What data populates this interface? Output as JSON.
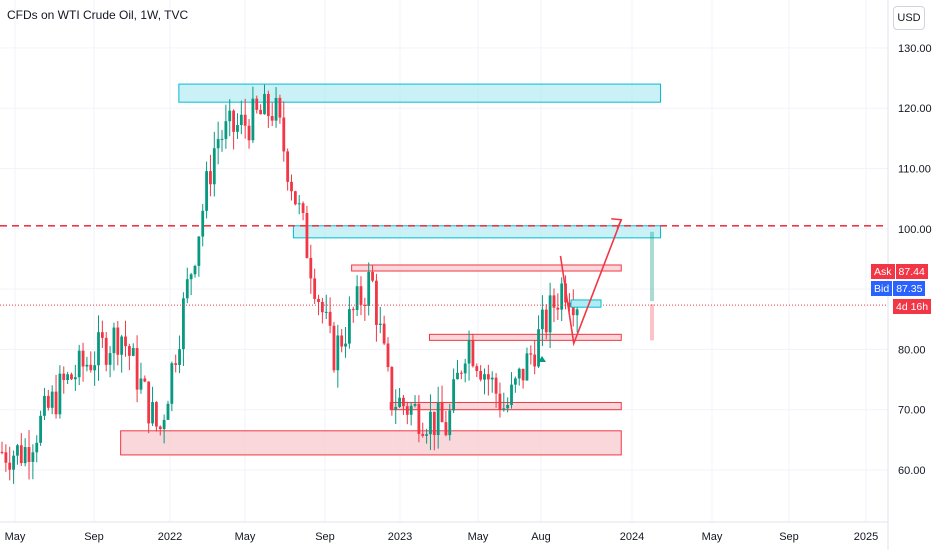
{
  "header": {
    "title": "CFDs on WTI Crude Oil, 1W, TVC",
    "currency_button": "USD"
  },
  "price_labels": {
    "ask_label": "Ask",
    "ask_value": "87.44",
    "bid_label": "Bid",
    "bid_value": "87.35",
    "countdown": "4d 16h"
  },
  "colors": {
    "up": "#089981",
    "down": "#f23645",
    "resistance_zone_fill": "#b2ebf2",
    "resistance_zone_border": "#00bcd4",
    "support_zone_fill": "#f8c9cd",
    "support_zone_border": "#f23645",
    "dashed_line": "#f23645",
    "ask_bg": "#f23645",
    "bid_bg": "#2962ff"
  },
  "chart_data": {
    "type": "candlestick",
    "title": "CFDs on WTI Crude Oil, 1W, TVC",
    "y_axis": {
      "ticks": [
        60,
        70,
        80,
        90,
        100,
        110,
        120,
        130
      ],
      "tick_labels": [
        "60.00",
        "70.00",
        "80.00",
        "90.00",
        "100.00",
        "110.00",
        "120.00",
        "130.00"
      ],
      "range": [
        55,
        135
      ]
    },
    "x_axis": {
      "tick_labels": [
        "May",
        "Sep",
        "2022",
        "May",
        "Sep",
        "2023",
        "May",
        "Aug",
        "2024",
        "May",
        "Sep",
        "2025"
      ]
    },
    "grid": true,
    "horizontal_line": {
      "value": 100.5,
      "style": "dashed"
    },
    "current_price": 87.35,
    "zones": [
      {
        "kind": "resistance",
        "from": "2022-01",
        "to": "2024-02",
        "low": 121,
        "high": 124
      },
      {
        "kind": "resistance",
        "from": "2022-07",
        "to": "2024-02",
        "low": 98.5,
        "high": 100.5
      },
      {
        "kind": "support",
        "from": "2022-10",
        "to": "2023-12",
        "low": 93,
        "high": 94
      },
      {
        "kind": "support",
        "from": "2023-02",
        "to": "2023-12",
        "low": 81.5,
        "high": 82.5
      },
      {
        "kind": "support",
        "from": "2022-12",
        "to": "2023-12",
        "low": 70,
        "high": 71.2
      },
      {
        "kind": "support",
        "from": "2021-10",
        "to": "2023-12",
        "low": 62.5,
        "high": 66.5
      }
    ],
    "projection_path": [
      {
        "date": "2023-09-10",
        "price": 95.5
      },
      {
        "date": "2023-10-01",
        "price": 81
      },
      {
        "date": "2023-12-15",
        "price": 101.5
      }
    ],
    "closes_sample": [
      {
        "date": "2021-05",
        "close": 63
      },
      {
        "date": "2021-07",
        "close": 74
      },
      {
        "date": "2021-10",
        "close": 83
      },
      {
        "date": "2021-12",
        "close": 66
      },
      {
        "date": "2022-03",
        "close": 115
      },
      {
        "date": "2022-06",
        "close": 120
      },
      {
        "date": "2022-09",
        "close": 79
      },
      {
        "date": "2022-11",
        "close": 92
      },
      {
        "date": "2022-12",
        "close": 72
      },
      {
        "date": "2023-03",
        "close": 67
      },
      {
        "date": "2023-04",
        "close": 82
      },
      {
        "date": "2023-06",
        "close": 70
      },
      {
        "date": "2023-09",
        "close": 91
      },
      {
        "date": "2023-10",
        "close": 87.35
      }
    ]
  }
}
